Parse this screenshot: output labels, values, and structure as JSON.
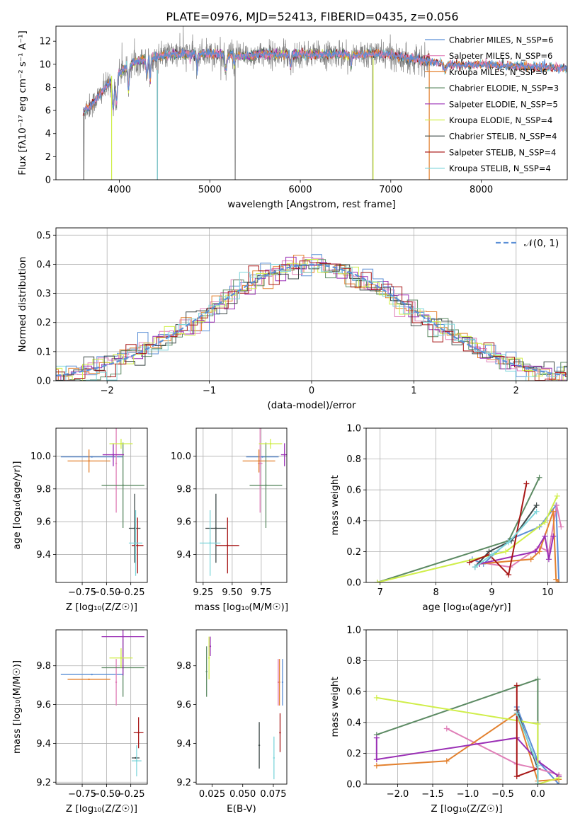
{
  "figure_title": "PLATE=0976, MJD=52413, FIBERID=0435, z=0.056",
  "colors": {
    "data": "#808080",
    "chabrier_miles": "#5b8fd6",
    "salpeter_miles": "#e07fb8",
    "kroupa_miles": "#e3812f",
    "chabrier_elodie": "#5c8a63",
    "salpeter_elodie": "#9a2fb5",
    "kroupa_elodie": "#d0ee4a",
    "chabrier_stelib": "#3e4a49",
    "salpeter_stelib": "#a81818",
    "kroupa_stelib": "#7fd6db"
  },
  "chart_data": [
    {
      "id": "spectrum",
      "type": "line",
      "xlabel": "wavelength [Angstrom, rest frame]",
      "ylabel": "Flux [fλ10⁻¹⁷ erg cm⁻² s⁻¹ A⁻¹]",
      "xlim": [
        3300,
        8950
      ],
      "ylim": [
        0,
        13.3
      ],
      "xticks": [
        "4000",
        "5000",
        "6000",
        "7000",
        "8000"
      ],
      "yticks": [
        "0",
        "2",
        "4",
        "6",
        "8",
        "10",
        "12"
      ],
      "grid": false,
      "legend_position": "top-right",
      "legend": [
        "Chabrier MILES, N_SSP=6",
        "Salpeter MILES, N_SSP=6",
        "Kroupa MILES, N_SSP=6",
        "Chabrier ELODIE, N_SSP=3",
        "Salpeter ELODIE, N_SSP=5",
        "Kroupa ELODIE, N_SSP=4",
        "Chabrier STELIB, N_SSP=4",
        "Salpeter STELIB, N_SSP=4",
        "Kroupa STELIB, N_SSP=4"
      ],
      "anchors_x": [
        3600,
        3700,
        3800,
        3900,
        4000,
        4200,
        4400,
        4600,
        4800,
        5000,
        5200,
        5400,
        5600,
        5800,
        6000,
        6200,
        6400,
        6600,
        6800,
        7000,
        7200,
        7400,
        7600,
        7800,
        8000,
        8200,
        8400,
        8600,
        8800,
        8950
      ],
      "anchors_y": [
        6.0,
        6.5,
        7.5,
        8.5,
        9.3,
        10.3,
        10.6,
        10.9,
        10.9,
        10.9,
        10.8,
        10.7,
        10.9,
        10.8,
        10.9,
        10.8,
        10.9,
        10.8,
        10.9,
        10.8,
        10.5,
        10.3,
        10.0,
        9.9,
        10.0,
        9.9,
        9.8,
        9.8,
        9.7,
        9.7
      ],
      "data_range": [
        3600,
        7420
      ],
      "model_ranges": [
        [
          3600,
          8950
        ],
        [
          3600,
          8950
        ],
        [
          3600,
          8950
        ],
        [
          3910,
          6810
        ],
        [
          3910,
          6810
        ],
        [
          3910,
          6810
        ],
        [
          3600,
          8950
        ],
        [
          3600,
          8950
        ],
        [
          3600,
          8950
        ]
      ]
    },
    {
      "id": "residuals",
      "type": "line",
      "xlabel": "(data-model)/error",
      "ylabel": "Normed distribution",
      "xlim": [
        -2.5,
        2.5
      ],
      "ylim": [
        0,
        0.525
      ],
      "xticks": [
        "−2",
        "−1",
        "0",
        "1",
        "2"
      ],
      "yticks": [
        "0.0",
        "0.1",
        "0.2",
        "0.3",
        "0.4",
        "0.5"
      ],
      "grid": true,
      "legend_position": "top-right",
      "legend": [
        "𝒩(0, 1)"
      ],
      "bin_width": 0.1
    },
    {
      "id": "age_vs_Z",
      "type": "scatter",
      "xlabel": "Z [log₁₀(Z/Z☉)]",
      "ylabel": "age  [log₁₀(age/yr)]",
      "xlim": [
        -1.02,
        -0.08
      ],
      "ylim": [
        9.23,
        10.17
      ],
      "xticks": [
        "−0.75",
        "−0.50",
        "−0.25"
      ],
      "yticks": [
        "9.4",
        "9.6",
        "9.8",
        "10.0"
      ],
      "grid": true,
      "points": [
        {
          "x": -0.65,
          "y": 9.995,
          "xerr": 0.32,
          "yerr": 0.0
        },
        {
          "x": -0.4,
          "y": 9.955,
          "xerr": 0.0,
          "yerr": 0.3
        },
        {
          "x": -0.68,
          "y": 9.97,
          "xerr": 0.22,
          "yerr": 0.07
        },
        {
          "x": -0.33,
          "y": 9.822,
          "xerr": 0.22,
          "yerr": 0.26
        },
        {
          "x": -0.43,
          "y": 10.008,
          "xerr": 0.11,
          "yerr": 0.07
        },
        {
          "x": -0.35,
          "y": 10.075,
          "xerr": 0.12,
          "yerr": 0.03
        },
        {
          "x": -0.21,
          "y": 9.56,
          "xerr": 0.06,
          "yerr": 0.21
        },
        {
          "x": -0.18,
          "y": 9.455,
          "xerr": 0.06,
          "yerr": 0.17
        },
        {
          "x": -0.2,
          "y": 9.47,
          "xerr": 0.07,
          "yerr": 0.2
        }
      ]
    },
    {
      "id": "age_vs_mass",
      "type": "scatter",
      "xlabel": "mass [log₁₀(M/M☉)]",
      "ylabel": "",
      "xlim": [
        9.19,
        9.97
      ],
      "ylim": [
        9.23,
        10.17
      ],
      "xticks": [
        "9.25",
        "9.50",
        "9.75"
      ],
      "yticks": [
        "9.4",
        "9.6",
        "9.8",
        "10.0"
      ],
      "grid": true,
      "points": [
        {
          "x": 9.76,
          "y": 9.995,
          "xerr": 0.14,
          "yerr": 0.0
        },
        {
          "x": 9.74,
          "y": 9.955,
          "xerr": 0.02,
          "yerr": 0.3
        },
        {
          "x": 9.73,
          "y": 9.97,
          "xerr": 0.14,
          "yerr": 0.07
        },
        {
          "x": 9.79,
          "y": 9.822,
          "xerr": 0.14,
          "yerr": 0.26
        },
        {
          "x": 9.95,
          "y": 10.008,
          "xerr": 0.03,
          "yerr": 0.07
        },
        {
          "x": 9.83,
          "y": 10.075,
          "xerr": 0.1,
          "yerr": 0.03
        },
        {
          "x": 9.36,
          "y": 9.56,
          "xerr": 0.09,
          "yerr": 0.21
        },
        {
          "x": 9.46,
          "y": 9.455,
          "xerr": 0.1,
          "yerr": 0.17
        },
        {
          "x": 9.31,
          "y": 9.47,
          "xerr": 0.09,
          "yerr": 0.2
        }
      ]
    },
    {
      "id": "mass_weight_vs_age",
      "type": "line",
      "xlabel": "age  [log₁₀(age/yr)]",
      "ylabel": "mass weight",
      "xlim": [
        6.75,
        10.35
      ],
      "ylim": [
        0.0,
        1.0
      ],
      "xticks": [
        "7",
        "8",
        "9",
        "10"
      ],
      "yticks": [
        "0.0",
        "0.2",
        "0.4",
        "0.6",
        "0.8",
        "1.0"
      ],
      "grid": true,
      "series": [
        {
          "x": [
            8.65,
            8.85,
            9.33,
            9.85,
            10.15,
            10.2
          ],
          "y": [
            0.15,
            0.12,
            0.28,
            0.36,
            0.5,
            0.0
          ]
        },
        {
          "x": [
            8.78,
            9.33,
            9.85,
            10.02,
            10.16,
            10.24
          ],
          "y": [
            0.13,
            0.1,
            0.23,
            0.2,
            0.5,
            0.36
          ]
        },
        {
          "x": [
            8.78,
            9.7,
            9.85,
            10.1,
            10.15,
            10.2
          ],
          "y": [
            0.12,
            0.15,
            0.2,
            0.46,
            0.02,
            0.0
          ]
        },
        {
          "x": [
            6.95,
            9.3,
            9.85
          ],
          "y": [
            0.0,
            0.27,
            0.68
          ]
        },
        {
          "x": [
            8.78,
            9.78,
            9.95,
            10.02,
            10.1
          ],
          "y": [
            0.12,
            0.2,
            0.3,
            0.15,
            0.3
          ]
        },
        {
          "x": [
            6.95,
            9.25,
            9.95,
            10.17
          ],
          "y": [
            0.0,
            0.2,
            0.39,
            0.56
          ]
        },
        {
          "x": [
            8.7,
            8.95,
            9.35,
            9.8
          ],
          "y": [
            0.1,
            0.2,
            0.27,
            0.5
          ]
        },
        {
          "x": [
            8.6,
            8.95,
            9.3,
            9.62
          ],
          "y": [
            0.13,
            0.18,
            0.05,
            0.64
          ]
        },
        {
          "x": [
            8.7,
            9.0,
            9.3,
            9.8
          ],
          "y": [
            0.1,
            0.18,
            0.26,
            0.46
          ]
        }
      ]
    },
    {
      "id": "mass_vs_Z",
      "type": "scatter",
      "xlabel": "Z [log₁₀(Z/Z☉)]",
      "ylabel": "mass [log₁₀(M/M☉)]",
      "xlim": [
        -1.02,
        -0.08
      ],
      "ylim": [
        9.19,
        9.985
      ],
      "xticks": [
        "−0.75",
        "−0.50",
        "−0.25"
      ],
      "yticks": [
        "9.2",
        "9.4",
        "9.6",
        "9.8"
      ],
      "grid": true,
      "points": [
        {
          "x": -0.65,
          "y": 9.755,
          "xerr": 0.32,
          "yerr": 0.0
        },
        {
          "x": -0.4,
          "y": 9.715,
          "xerr": 0.0,
          "yerr": 0.12
        },
        {
          "x": -0.68,
          "y": 9.73,
          "xerr": 0.22,
          "yerr": 0.0
        },
        {
          "x": -0.33,
          "y": 9.79,
          "xerr": 0.22,
          "yerr": 0.15
        },
        {
          "x": -0.33,
          "y": 9.95,
          "xerr": 0.22,
          "yerr": 0.2
        },
        {
          "x": -0.35,
          "y": 9.84,
          "xerr": 0.12,
          "yerr": 0.05
        },
        {
          "x": -0.2,
          "y": 9.325,
          "xerr": 0.04,
          "yerr": 0.0
        },
        {
          "x": -0.17,
          "y": 9.455,
          "xerr": 0.05,
          "yerr": 0.08
        },
        {
          "x": -0.19,
          "y": 9.31,
          "xerr": 0.05,
          "yerr": 0.08
        }
      ]
    },
    {
      "id": "mass_vs_ebv",
      "type": "scatter",
      "xlabel": "E(B-V)",
      "ylabel": "",
      "xlim": [
        0.012,
        0.086
      ],
      "ylim": [
        9.19,
        9.985
      ],
      "xticks": [
        "0.025",
        "0.050",
        "0.075"
      ],
      "yticks": [
        "9.2",
        "9.4",
        "9.6",
        "9.8"
      ],
      "grid": false,
      "points": [
        {
          "x": 0.0825,
          "y": 9.715,
          "yerr": 0.12
        },
        {
          "x": 0.079,
          "y": 9.715,
          "yerr": 0.12
        },
        {
          "x": 0.08,
          "y": 9.715,
          "yerr": 0.12
        },
        {
          "x": 0.0205,
          "y": 9.77,
          "yerr": 0.13
        },
        {
          "x": 0.0235,
          "y": 9.9,
          "yerr": 0.05
        },
        {
          "x": 0.0225,
          "y": 9.84,
          "yerr": 0.11
        },
        {
          "x": 0.0635,
          "y": 9.39,
          "yerr": 0.12
        },
        {
          "x": 0.0805,
          "y": 9.455,
          "yerr": 0.1
        },
        {
          "x": 0.0755,
          "y": 9.325,
          "yerr": 0.11
        }
      ]
    },
    {
      "id": "mass_weight_vs_Z",
      "type": "line",
      "xlabel": "Z [log₁₀(Z/Z☉)]",
      "ylabel": "mass weight",
      "xlim": [
        -2.45,
        0.42
      ],
      "ylim": [
        0.0,
        1.0
      ],
      "xticks": [
        "−2.0",
        "−1.5",
        "−1.0",
        "−0.5",
        "0.0"
      ],
      "yticks": [
        "0.0",
        "0.2",
        "0.4",
        "0.6",
        "0.8",
        "1.0"
      ],
      "grid": true,
      "series": [
        {
          "x": [
            -0.3,
            0.0,
            0.3
          ],
          "y": [
            0.5,
            0.15,
            0.0
          ]
        },
        {
          "x": [
            -1.3,
            -0.3,
            0.0,
            0.3
          ],
          "y": [
            0.36,
            0.13,
            0.1,
            0.06
          ]
        },
        {
          "x": [
            -2.3,
            -1.3,
            -0.3,
            0.0,
            0.3
          ],
          "y": [
            0.12,
            0.15,
            0.46,
            0.02,
            0.03
          ]
        },
        {
          "x": [
            -2.3,
            0.0,
            0.0
          ],
          "y": [
            0.32,
            0.68,
            0.0
          ]
        },
        {
          "x": [
            -2.3,
            -2.3,
            -0.3,
            0.0,
            0.3
          ],
          "y": [
            0.3,
            0.16,
            0.3,
            0.15,
            0.05
          ]
        },
        {
          "x": [
            -2.3,
            0.0,
            0.0,
            0.3
          ],
          "y": [
            0.56,
            0.39,
            0.0,
            0.04
          ]
        },
        {
          "x": [
            -0.3,
            0.0,
            0.0
          ],
          "y": [
            0.48,
            0.1,
            0.0
          ]
        },
        {
          "x": [
            -0.3,
            -0.3,
            0.0
          ],
          "y": [
            0.64,
            0.05,
            0.1
          ]
        },
        {
          "x": [
            -0.3,
            0.0,
            0.0
          ],
          "y": [
            0.46,
            0.12,
            0.0
          ]
        }
      ]
    }
  ]
}
